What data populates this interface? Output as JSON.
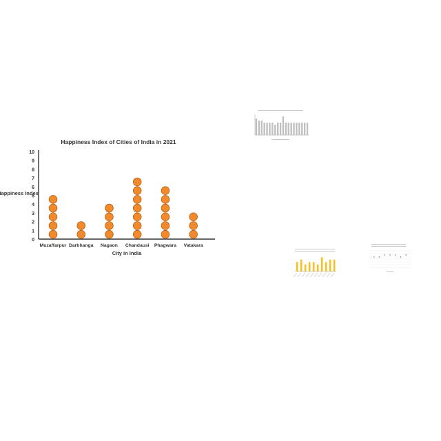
{
  "chart_data": [
    {
      "type": "pictograph",
      "title": "Happiness Index of Cities of India in 2021",
      "xlabel": "City in India",
      "ylabel": "Happiness Index",
      "categories": [
        "Muzaffarpur",
        "Darbhanga",
        "Nagaon",
        "Chandausi",
        "Phagwara",
        "Vatakara"
      ],
      "values": [
        5,
        2,
        4,
        7,
        6,
        3
      ],
      "ylim": [
        0,
        10
      ],
      "yticks": [
        0,
        1,
        2,
        3,
        4,
        5,
        6,
        7,
        8,
        9,
        10
      ],
      "marker_color": "#f08a2d",
      "marker_stroke": "#b35d12",
      "grid": false
    },
    {
      "type": "bar",
      "values": [
        8,
        7,
        7,
        6,
        6,
        6,
        6,
        5,
        6,
        6,
        9,
        6,
        6,
        6,
        6,
        6,
        6,
        6,
        6,
        6
      ],
      "ylim": [
        0,
        10
      ],
      "color": "#bfbfbf"
    },
    {
      "type": "bar",
      "values": [
        4,
        5,
        3,
        4,
        4,
        3,
        6,
        4,
        5,
        5
      ],
      "ylim": [
        0,
        7
      ],
      "color": "#f2c12e"
    },
    {
      "type": "scatter",
      "x": [
        1,
        2,
        3,
        4,
        5,
        6,
        7
      ],
      "y": [
        5,
        5,
        6,
        6,
        6,
        5,
        6
      ],
      "ylim": [
        0,
        8
      ],
      "color": "#7f7f7f"
    }
  ]
}
